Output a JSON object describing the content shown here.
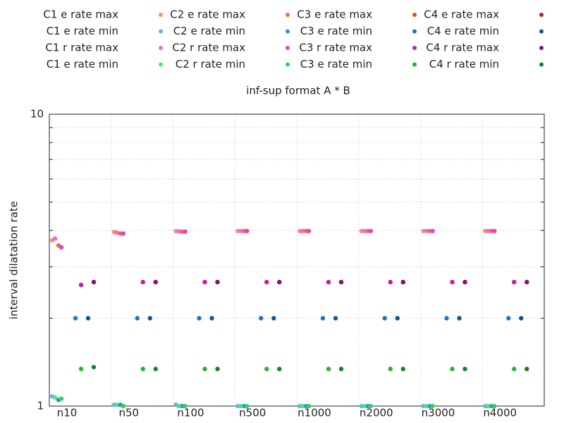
{
  "chart_data": {
    "type": "scatter",
    "title": "inf-sup format A * B",
    "y_label": "interval dilatation rate",
    "categories": [
      "n10",
      "n50",
      "n100",
      "n500",
      "n1000",
      "n2000",
      "n3000",
      "n4000"
    ],
    "log_scale_y": true,
    "grid": true,
    "ylim": [
      1,
      10
    ],
    "yticks": [
      1,
      10
    ],
    "yminor": [
      2,
      3,
      4,
      5,
      6,
      7,
      8,
      9
    ],
    "series": [
      {
        "name": "C1 e rate max",
        "color": "#f4956a",
        "values": [
          3.7,
          3.95,
          3.98,
          3.98,
          3.98,
          3.98,
          3.98,
          3.98
        ]
      },
      {
        "name": "C1 e rate min",
        "color": "#6aaeee",
        "values": [
          1.08,
          1.01,
          1.01,
          1.0,
          1.0,
          1.0,
          1.0,
          1.0
        ]
      },
      {
        "name": "C1 r rate max",
        "color": "#f466d8",
        "values": [
          3.75,
          3.93,
          3.97,
          3.98,
          3.98,
          3.98,
          3.98,
          3.98
        ]
      },
      {
        "name": "C1 e rate min",
        "color": "#4ee86a",
        "values": [
          1.07,
          1.01,
          1.0,
          1.0,
          1.0,
          1.0,
          1.0,
          1.0
        ]
      },
      {
        "name": "C2 e rate max",
        "color": "#f06e3c",
        "values": [
          3.55,
          3.9,
          3.96,
          3.98,
          3.98,
          3.98,
          3.98,
          3.98
        ]
      },
      {
        "name": "C2 e rate min",
        "color": "#3190e2",
        "values": [
          1.05,
          1.01,
          1.0,
          1.0,
          1.0,
          1.0,
          1.0,
          1.0
        ]
      },
      {
        "name": "C2 r rate max",
        "color": "#ec3ccc",
        "values": [
          3.5,
          3.9,
          3.96,
          3.98,
          3.98,
          3.98,
          3.98,
          3.98
        ]
      },
      {
        "name": "C2 r rate min",
        "color": "#34d448",
        "values": [
          1.06,
          1.0,
          1.0,
          1.0,
          1.0,
          1.0,
          1.0,
          1.0
        ]
      },
      {
        "name": "C3 e rate max",
        "color": "#d8521c",
        "values": [
          2.6,
          2.66,
          2.66,
          2.66,
          2.66,
          2.66,
          2.66,
          2.66
        ]
      },
      {
        "name": "C3 e rate min",
        "color": "#1f74c0",
        "values": [
          2.0,
          2.0,
          2.0,
          2.0,
          2.0,
          2.0,
          2.0,
          2.0
        ]
      },
      {
        "name": "C3 r rate max",
        "color": "#c41eaa",
        "values": [
          2.6,
          2.66,
          2.66,
          2.66,
          2.66,
          2.66,
          2.66,
          2.66
        ]
      },
      {
        "name": "C3 e rate min",
        "color": "#22b434",
        "values": [
          1.34,
          1.34,
          1.34,
          1.34,
          1.34,
          1.34,
          1.34,
          1.34
        ]
      },
      {
        "name": "C4 e rate max",
        "color": "#9c2c1a",
        "values": [
          2.66,
          2.66,
          2.66,
          2.66,
          2.66,
          2.66,
          2.66,
          2.66
        ]
      },
      {
        "name": "C4 e rate min",
        "color": "#14568e",
        "values": [
          2.0,
          2.0,
          2.0,
          2.0,
          2.0,
          2.0,
          2.0,
          2.0
        ]
      },
      {
        "name": "C4 r rate max",
        "color": "#920c78",
        "values": [
          2.66,
          2.66,
          2.66,
          2.66,
          2.66,
          2.66,
          2.66,
          2.66
        ]
      },
      {
        "name": "C4 r rate min",
        "color": "#11822a",
        "values": [
          1.36,
          1.34,
          1.34,
          1.34,
          1.34,
          1.34,
          1.34,
          1.34
        ]
      }
    ]
  }
}
